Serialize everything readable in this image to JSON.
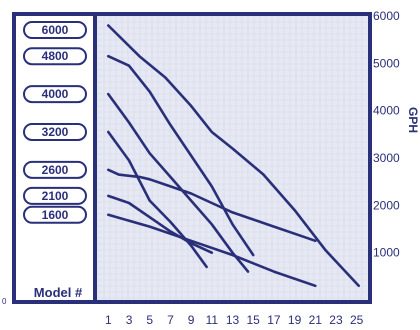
{
  "colors": {
    "border": "#2a2f7a",
    "panel": "#e6e8f3",
    "grid": "#d3d7e9",
    "curve": "#2a2f7a",
    "pill_fill": "#ffffff"
  },
  "chart_data": {
    "type": "line",
    "xlabel": "",
    "ylabel": "GPH",
    "x_ticks": [
      "1",
      "3",
      "5",
      "7",
      "9",
      "11",
      "13",
      "15",
      "17",
      "19",
      "21",
      "23",
      "25"
    ],
    "y_ticks": [
      "1000",
      "2000",
      "3000",
      "4000",
      "5000",
      "6000"
    ],
    "zero_label": "0",
    "legend_title": "Model #",
    "xlim": [
      0,
      26
    ],
    "ylim": [
      0,
      6000
    ],
    "grid": true,
    "series": [
      {
        "name": "6000",
        "x": [
          1,
          4,
          6.5,
          9,
          11,
          13,
          16,
          19,
          22,
          25.2
        ],
        "y": [
          5800,
          5150,
          4700,
          4100,
          3550,
          3200,
          2650,
          1900,
          1050,
          300
        ]
      },
      {
        "name": "4800",
        "x": [
          1,
          3,
          5,
          7,
          9,
          11,
          13,
          15
        ],
        "y": [
          5150,
          4950,
          4400,
          3700,
          3050,
          2400,
          1600,
          950
        ]
      },
      {
        "name": "4000",
        "x": [
          1,
          3,
          5,
          7,
          9,
          11,
          13,
          14.5
        ],
        "y": [
          4350,
          3750,
          3100,
          2600,
          2100,
          1600,
          1000,
          600
        ]
      },
      {
        "name": "3200",
        "x": [
          1,
          3,
          5,
          7,
          9,
          10.5
        ],
        "y": [
          3550,
          2950,
          2100,
          1650,
          1150,
          700
        ]
      },
      {
        "name": "2600",
        "x": [
          1,
          2,
          4,
          5,
          7,
          9,
          11,
          13,
          15,
          17,
          19,
          21
        ],
        "y": [
          2750,
          2650,
          2600,
          2550,
          2400,
          2250,
          2050,
          1850,
          1700,
          1550,
          1400,
          1250
        ]
      },
      {
        "name": "2100",
        "x": [
          1,
          3,
          5,
          7,
          9,
          11
        ],
        "y": [
          2200,
          2050,
          1750,
          1450,
          1200,
          1000
        ]
      },
      {
        "name": "1600",
        "x": [
          1,
          5,
          9,
          13,
          17,
          21
        ],
        "y": [
          1800,
          1550,
          1250,
          950,
          600,
          300
        ]
      }
    ]
  }
}
